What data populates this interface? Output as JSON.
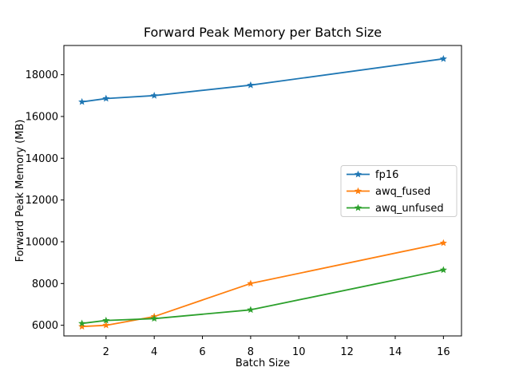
{
  "figure": {
    "background": "#ffffff"
  },
  "chart_data": {
    "type": "line",
    "title": "Forward Peak Memory per Batch Size",
    "xlabel": "Batch Size",
    "ylabel": "Forward Peak Memory (MB)",
    "x": [
      1,
      2,
      4,
      8,
      16
    ],
    "series": [
      {
        "name": "fp16",
        "color": "#1f77b4",
        "marker": "star",
        "values": [
          16700,
          16860,
          17000,
          17500,
          18760
        ]
      },
      {
        "name": "awq_fused",
        "color": "#ff7f0e",
        "marker": "star",
        "values": [
          5940,
          6000,
          6420,
          8000,
          9940
        ]
      },
      {
        "name": "awq_unfused",
        "color": "#2ca02c",
        "marker": "star",
        "values": [
          6090,
          6230,
          6320,
          6740,
          8650
        ]
      }
    ],
    "xticks": [
      2,
      4,
      6,
      8,
      10,
      12,
      14,
      16
    ],
    "yticks": [
      6000,
      8000,
      10000,
      12000,
      14000,
      16000,
      18000
    ],
    "xlim": [
      0.25,
      16.75
    ],
    "ylim": [
      5490,
      19400
    ],
    "grid": false,
    "legend_position": "center right",
    "legend_border_color": "#cccccc",
    "axis_color": "#000000"
  }
}
